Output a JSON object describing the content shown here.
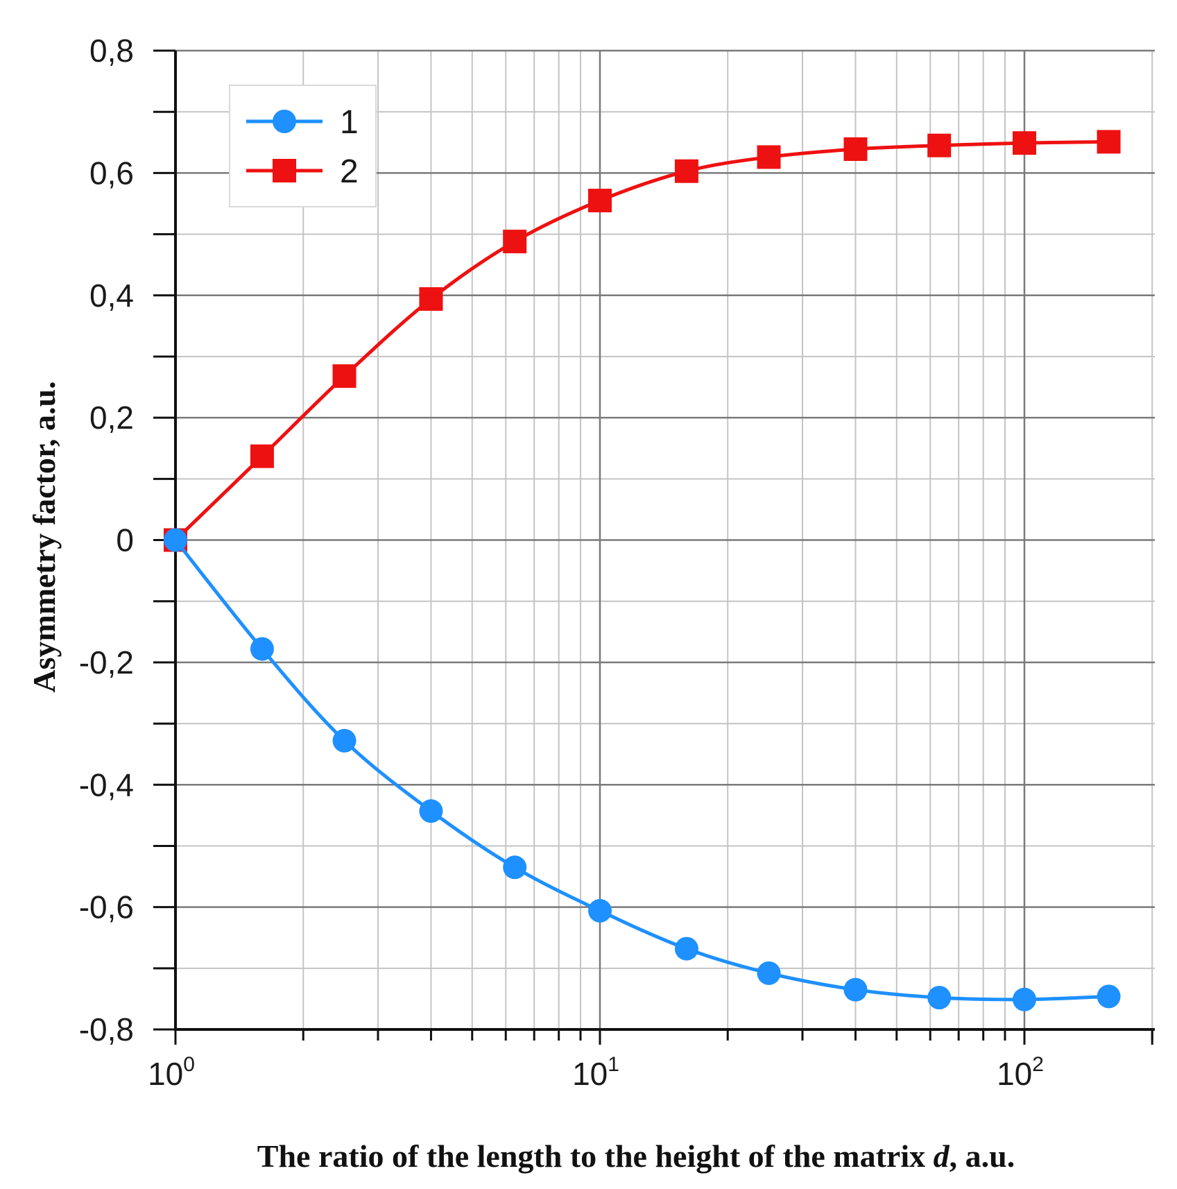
{
  "chart_data": {
    "type": "line",
    "title": "",
    "xlabel": "The ratio of the length to the height of the matrix d, a.u.",
    "xlabel_parts": {
      "before": "The ratio of the length to the height of the matrix ",
      "italic": "d",
      "after": ", a.u."
    },
    "ylabel": "Asymmetry factor, a.u.",
    "xscale": "log",
    "xlim": [
      1,
      200
    ],
    "ylim": [
      -0.8,
      0.8
    ],
    "grid": true,
    "legend_position": "top-left",
    "y_ticks": [
      {
        "value": 0.8,
        "label": "0,8"
      },
      {
        "value": 0.6,
        "label": "0,6"
      },
      {
        "value": 0.4,
        "label": "0,4"
      },
      {
        "value": 0.2,
        "label": "0,2"
      },
      {
        "value": 0,
        "label": "0"
      },
      {
        "value": -0.2,
        "label": "-0,2"
      },
      {
        "value": -0.4,
        "label": "-0,4"
      },
      {
        "value": -0.6,
        "label": "-0,6"
      },
      {
        "value": -0.8,
        "label": "-0,8"
      }
    ],
    "x_ticks": [
      {
        "value": 1,
        "base": "10",
        "exp": "0"
      },
      {
        "value": 10,
        "base": "10",
        "exp": "1"
      },
      {
        "value": 100,
        "base": "10",
        "exp": "2"
      }
    ],
    "series": [
      {
        "name": "1",
        "color": "#1e90ff",
        "marker": "circle",
        "x": [
          1,
          1.6,
          2.5,
          4,
          6.3,
          10,
          16,
          25,
          40,
          63,
          100,
          158
        ],
        "values": [
          0,
          -0.178,
          -0.328,
          -0.443,
          -0.535,
          -0.606,
          -0.668,
          -0.708,
          -0.735,
          -0.748,
          -0.751,
          -0.746
        ]
      },
      {
        "name": "2",
        "color": "#ee1111",
        "marker": "square",
        "x": [
          1,
          1.6,
          2.5,
          4,
          6.3,
          10,
          16,
          25,
          40,
          63,
          100,
          158
        ],
        "values": [
          0,
          0.137,
          0.268,
          0.394,
          0.488,
          0.555,
          0.603,
          0.626,
          0.639,
          0.645,
          0.649,
          0.651
        ]
      }
    ]
  }
}
